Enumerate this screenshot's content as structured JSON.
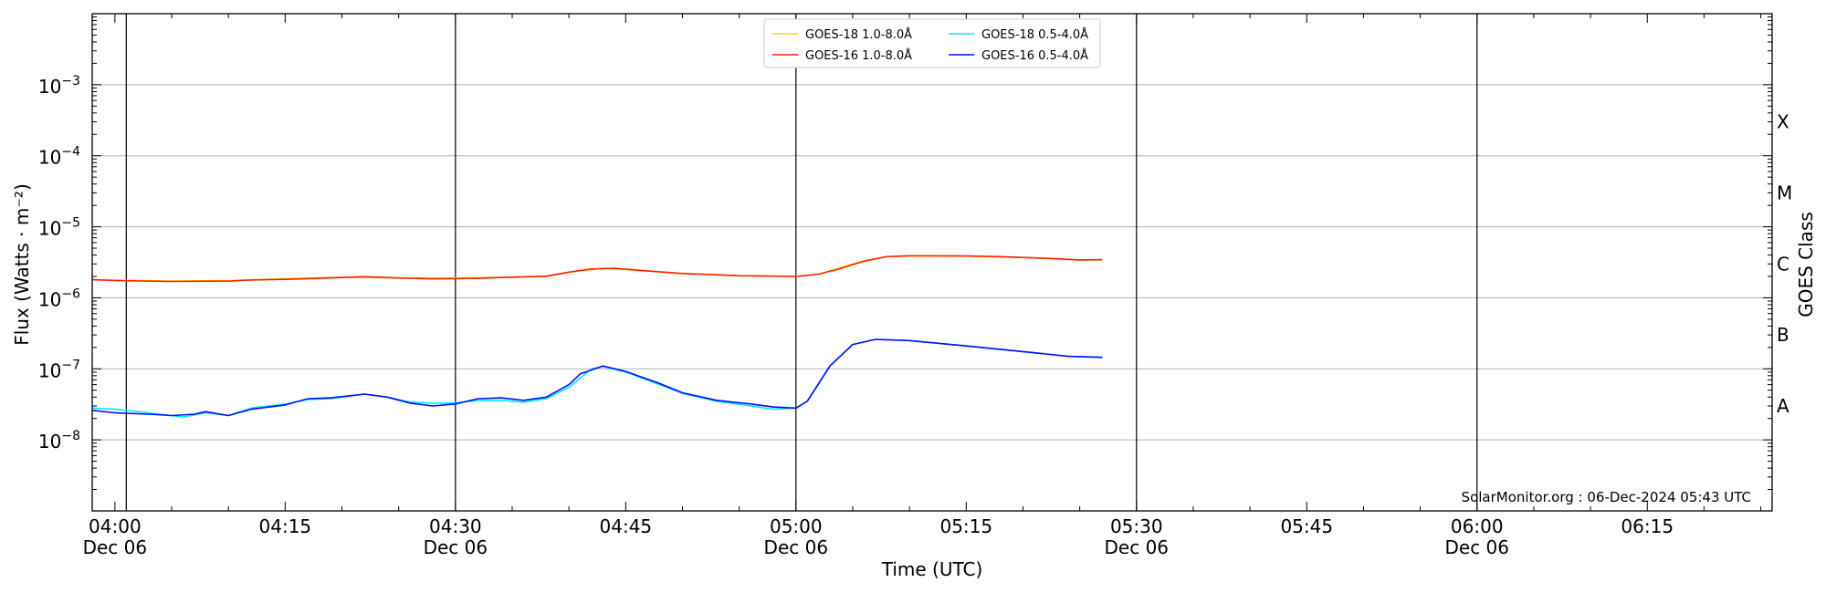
{
  "chart_data": {
    "type": "line",
    "xlabel": "Time (UTC)",
    "ylabel": "Flux (Watts · m⁻²)",
    "ylabel_right": "GOES Class",
    "credit": "SolarMonitor.org : 06-Dec-2024 05:43 UTC",
    "x_range": [
      "03:58",
      "06:26"
    ],
    "y_scale": "log",
    "ylim": [
      1e-09,
      0.01
    ],
    "y_ticks": [
      {
        "exp": -8,
        "label": "10",
        "sup": "−8"
      },
      {
        "exp": -7,
        "label": "10",
        "sup": "−7"
      },
      {
        "exp": -6,
        "label": "10",
        "sup": "−6"
      },
      {
        "exp": -5,
        "label": "10",
        "sup": "−5"
      },
      {
        "exp": -4,
        "label": "10",
        "sup": "−4"
      },
      {
        "exp": -3,
        "label": "10",
        "sup": "−3"
      }
    ],
    "x_ticks": [
      {
        "time": "04:00",
        "label": "04:00",
        "sublabel": "Dec 06"
      },
      {
        "time": "04:15",
        "label": "04:15",
        "sublabel": ""
      },
      {
        "time": "04:30",
        "label": "04:30",
        "sublabel": "Dec 06"
      },
      {
        "time": "04:45",
        "label": "04:45",
        "sublabel": ""
      },
      {
        "time": "05:00",
        "label": "05:00",
        "sublabel": "Dec 06"
      },
      {
        "time": "05:15",
        "label": "05:15",
        "sublabel": ""
      },
      {
        "time": "05:30",
        "label": "05:30",
        "sublabel": "Dec 06"
      },
      {
        "time": "05:45",
        "label": "05:45",
        "sublabel": ""
      },
      {
        "time": "06:00",
        "label": "06:00",
        "sublabel": "Dec 06"
      },
      {
        "time": "06:15",
        "label": "06:15",
        "sublabel": ""
      }
    ],
    "vertical_lines": [
      "04:01",
      "04:30",
      "05:00",
      "05:30",
      "06:00"
    ],
    "goes_classes": [
      {
        "label": "A",
        "value": 3e-08
      },
      {
        "label": "B",
        "value": 3e-07
      },
      {
        "label": "C",
        "value": 3e-06
      },
      {
        "label": "M",
        "value": 3e-05
      },
      {
        "label": "X",
        "value": 0.0003
      }
    ],
    "grid": "horizontal at decades",
    "legend_position": "top-center",
    "series": [
      {
        "name": "GOES-18 1.0-8.0Å",
        "color": "#ffd700",
        "points": [
          [
            "03:58",
            1.8e-06
          ],
          [
            "04:05",
            1.72e-06
          ],
          [
            "04:10",
            1.75e-06
          ],
          [
            "04:15",
            1.85e-06
          ],
          [
            "04:20",
            1.95e-06
          ],
          [
            "04:25",
            1.9e-06
          ],
          [
            "04:30",
            1.9e-06
          ],
          [
            "04:35",
            1.95e-06
          ],
          [
            "04:38",
            2e-06
          ],
          [
            "04:40",
            2.3e-06
          ],
          [
            "04:43",
            2.6e-06
          ],
          [
            "04:45",
            2.5e-06
          ],
          [
            "04:50",
            2.2e-06
          ],
          [
            "04:55",
            2.05e-06
          ],
          [
            "05:00",
            2e-06
          ],
          [
            "05:02",
            2.15e-06
          ],
          [
            "05:05",
            3e-06
          ],
          [
            "05:08",
            3.8e-06
          ],
          [
            "05:10",
            3.9e-06
          ],
          [
            "05:15",
            3.85e-06
          ],
          [
            "05:20",
            3.7e-06
          ],
          [
            "05:25",
            3.4e-06
          ],
          [
            "05:27",
            3.4e-06
          ]
        ]
      },
      {
        "name": "GOES-16 1.0-8.0Å",
        "color": "#ff2000",
        "points": [
          [
            "03:58",
            1.8e-06
          ],
          [
            "04:00",
            1.75e-06
          ],
          [
            "04:05",
            1.7e-06
          ],
          [
            "04:10",
            1.72e-06
          ],
          [
            "04:12",
            1.78e-06
          ],
          [
            "04:15",
            1.82e-06
          ],
          [
            "04:18",
            1.88e-06
          ],
          [
            "04:22",
            1.98e-06
          ],
          [
            "04:25",
            1.9e-06
          ],
          [
            "04:28",
            1.85e-06
          ],
          [
            "04:32",
            1.88e-06
          ],
          [
            "04:35",
            1.95e-06
          ],
          [
            "04:38",
            2.02e-06
          ],
          [
            "04:40",
            2.3e-06
          ],
          [
            "04:42",
            2.55e-06
          ],
          [
            "04:44",
            2.6e-06
          ],
          [
            "04:46",
            2.45e-06
          ],
          [
            "04:50",
            2.2e-06
          ],
          [
            "04:55",
            2.05e-06
          ],
          [
            "05:00",
            2e-06
          ],
          [
            "05:02",
            2.15e-06
          ],
          [
            "05:04",
            2.6e-06
          ],
          [
            "05:06",
            3.3e-06
          ],
          [
            "05:08",
            3.8e-06
          ],
          [
            "05:10",
            3.9e-06
          ],
          [
            "05:15",
            3.88e-06
          ],
          [
            "05:18",
            3.8e-06
          ],
          [
            "05:22",
            3.6e-06
          ],
          [
            "05:25",
            3.42e-06
          ],
          [
            "05:27",
            3.45e-06
          ]
        ]
      },
      {
        "name": "GOES-18 0.5-4.0Å",
        "color": "#00e5ff",
        "points": [
          [
            "03:58",
            2.8e-08
          ],
          [
            "04:00",
            2.7e-08
          ],
          [
            "04:03",
            2.4e-08
          ],
          [
            "04:06",
            2.1e-08
          ],
          [
            "04:08",
            2.4e-08
          ],
          [
            "04:10",
            2.2e-08
          ],
          [
            "04:12",
            2.8e-08
          ],
          [
            "04:15",
            3.2e-08
          ],
          [
            "04:17",
            3.7e-08
          ],
          [
            "04:19",
            3.8e-08
          ],
          [
            "04:22",
            4.4e-08
          ],
          [
            "04:24",
            4e-08
          ],
          [
            "04:26",
            3.4e-08
          ],
          [
            "04:28",
            3.3e-08
          ],
          [
            "04:30",
            3.3e-08
          ],
          [
            "04:32",
            3.6e-08
          ],
          [
            "04:34",
            3.6e-08
          ],
          [
            "04:36",
            3.4e-08
          ],
          [
            "04:38",
            3.8e-08
          ],
          [
            "04:40",
            5.5e-08
          ],
          [
            "04:42",
            1e-07
          ],
          [
            "04:43",
            1.08e-07
          ],
          [
            "04:45",
            9e-08
          ],
          [
            "04:48",
            6e-08
          ],
          [
            "04:50",
            4.5e-08
          ],
          [
            "04:53",
            3.5e-08
          ],
          [
            "04:56",
            3e-08
          ],
          [
            "04:58",
            2.7e-08
          ],
          [
            "05:00",
            2.8e-08
          ],
          [
            "05:01",
            3.5e-08
          ],
          [
            "05:03",
            1.1e-07
          ],
          [
            "05:05",
            2.2e-07
          ],
          [
            "05:07",
            2.6e-07
          ],
          [
            "05:10",
            2.5e-07
          ],
          [
            "05:15",
            2.1e-07
          ],
          [
            "05:20",
            1.75e-07
          ],
          [
            "05:24",
            1.5e-07
          ],
          [
            "05:27",
            1.45e-07
          ]
        ]
      },
      {
        "name": "GOES-16 0.5-4.0Å",
        "color": "#0010ff",
        "points": [
          [
            "03:58",
            2.6e-08
          ],
          [
            "04:00",
            2.4e-08
          ],
          [
            "04:03",
            2.3e-08
          ],
          [
            "04:05",
            2.2e-08
          ],
          [
            "04:07",
            2.3e-08
          ],
          [
            "04:08",
            2.5e-08
          ],
          [
            "04:10",
            2.2e-08
          ],
          [
            "04:12",
            2.7e-08
          ],
          [
            "04:15",
            3.1e-08
          ],
          [
            "04:17",
            3.8e-08
          ],
          [
            "04:19",
            3.9e-08
          ],
          [
            "04:22",
            4.4e-08
          ],
          [
            "04:24",
            4e-08
          ],
          [
            "04:26",
            3.3e-08
          ],
          [
            "04:28",
            3e-08
          ],
          [
            "04:30",
            3.2e-08
          ],
          [
            "04:32",
            3.8e-08
          ],
          [
            "04:34",
            3.9e-08
          ],
          [
            "04:36",
            3.6e-08
          ],
          [
            "04:38",
            4e-08
          ],
          [
            "04:40",
            6e-08
          ],
          [
            "04:41",
            8.5e-08
          ],
          [
            "04:43",
            1.1e-07
          ],
          [
            "04:45",
            9.2e-08
          ],
          [
            "04:48",
            6.2e-08
          ],
          [
            "04:50",
            4.6e-08
          ],
          [
            "04:53",
            3.6e-08
          ],
          [
            "04:56",
            3.2e-08
          ],
          [
            "04:58",
            2.9e-08
          ],
          [
            "05:00",
            2.8e-08
          ],
          [
            "05:01",
            3.5e-08
          ],
          [
            "05:03",
            1.1e-07
          ],
          [
            "05:05",
            2.2e-07
          ],
          [
            "05:07",
            2.6e-07
          ],
          [
            "05:10",
            2.5e-07
          ],
          [
            "05:15",
            2.1e-07
          ],
          [
            "05:20",
            1.75e-07
          ],
          [
            "05:24",
            1.5e-07
          ],
          [
            "05:27",
            1.45e-07
          ]
        ]
      }
    ]
  }
}
